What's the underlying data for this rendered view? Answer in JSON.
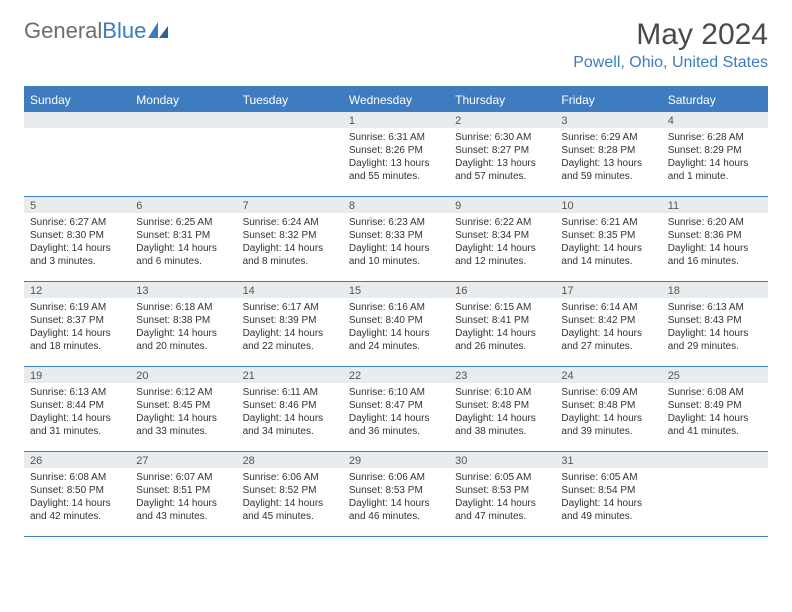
{
  "logo": {
    "text_general": "General",
    "text_blue": "Blue"
  },
  "header": {
    "month_title": "May 2024",
    "location": "Powell, Ohio, United States"
  },
  "colors": {
    "accent": "#3e7bbf",
    "daynum_bg": "#e9ecef",
    "text": "#333333",
    "logo_gray": "#6d6d6d"
  },
  "day_names": [
    "Sunday",
    "Monday",
    "Tuesday",
    "Wednesday",
    "Thursday",
    "Friday",
    "Saturday"
  ],
  "weeks": [
    [
      {
        "day": "",
        "empty": true
      },
      {
        "day": "",
        "empty": true
      },
      {
        "day": "",
        "empty": true
      },
      {
        "day": "1",
        "sunrise": "Sunrise: 6:31 AM",
        "sunset": "Sunset: 8:26 PM",
        "daylight": "Daylight: 13 hours and 55 minutes."
      },
      {
        "day": "2",
        "sunrise": "Sunrise: 6:30 AM",
        "sunset": "Sunset: 8:27 PM",
        "daylight": "Daylight: 13 hours and 57 minutes."
      },
      {
        "day": "3",
        "sunrise": "Sunrise: 6:29 AM",
        "sunset": "Sunset: 8:28 PM",
        "daylight": "Daylight: 13 hours and 59 minutes."
      },
      {
        "day": "4",
        "sunrise": "Sunrise: 6:28 AM",
        "sunset": "Sunset: 8:29 PM",
        "daylight": "Daylight: 14 hours and 1 minute."
      }
    ],
    [
      {
        "day": "5",
        "sunrise": "Sunrise: 6:27 AM",
        "sunset": "Sunset: 8:30 PM",
        "daylight": "Daylight: 14 hours and 3 minutes."
      },
      {
        "day": "6",
        "sunrise": "Sunrise: 6:25 AM",
        "sunset": "Sunset: 8:31 PM",
        "daylight": "Daylight: 14 hours and 6 minutes."
      },
      {
        "day": "7",
        "sunrise": "Sunrise: 6:24 AM",
        "sunset": "Sunset: 8:32 PM",
        "daylight": "Daylight: 14 hours and 8 minutes."
      },
      {
        "day": "8",
        "sunrise": "Sunrise: 6:23 AM",
        "sunset": "Sunset: 8:33 PM",
        "daylight": "Daylight: 14 hours and 10 minutes."
      },
      {
        "day": "9",
        "sunrise": "Sunrise: 6:22 AM",
        "sunset": "Sunset: 8:34 PM",
        "daylight": "Daylight: 14 hours and 12 minutes."
      },
      {
        "day": "10",
        "sunrise": "Sunrise: 6:21 AM",
        "sunset": "Sunset: 8:35 PM",
        "daylight": "Daylight: 14 hours and 14 minutes."
      },
      {
        "day": "11",
        "sunrise": "Sunrise: 6:20 AM",
        "sunset": "Sunset: 8:36 PM",
        "daylight": "Daylight: 14 hours and 16 minutes."
      }
    ],
    [
      {
        "day": "12",
        "sunrise": "Sunrise: 6:19 AM",
        "sunset": "Sunset: 8:37 PM",
        "daylight": "Daylight: 14 hours and 18 minutes."
      },
      {
        "day": "13",
        "sunrise": "Sunrise: 6:18 AM",
        "sunset": "Sunset: 8:38 PM",
        "daylight": "Daylight: 14 hours and 20 minutes."
      },
      {
        "day": "14",
        "sunrise": "Sunrise: 6:17 AM",
        "sunset": "Sunset: 8:39 PM",
        "daylight": "Daylight: 14 hours and 22 minutes."
      },
      {
        "day": "15",
        "sunrise": "Sunrise: 6:16 AM",
        "sunset": "Sunset: 8:40 PM",
        "daylight": "Daylight: 14 hours and 24 minutes."
      },
      {
        "day": "16",
        "sunrise": "Sunrise: 6:15 AM",
        "sunset": "Sunset: 8:41 PM",
        "daylight": "Daylight: 14 hours and 26 minutes."
      },
      {
        "day": "17",
        "sunrise": "Sunrise: 6:14 AM",
        "sunset": "Sunset: 8:42 PM",
        "daylight": "Daylight: 14 hours and 27 minutes."
      },
      {
        "day": "18",
        "sunrise": "Sunrise: 6:13 AM",
        "sunset": "Sunset: 8:43 PM",
        "daylight": "Daylight: 14 hours and 29 minutes."
      }
    ],
    [
      {
        "day": "19",
        "sunrise": "Sunrise: 6:13 AM",
        "sunset": "Sunset: 8:44 PM",
        "daylight": "Daylight: 14 hours and 31 minutes."
      },
      {
        "day": "20",
        "sunrise": "Sunrise: 6:12 AM",
        "sunset": "Sunset: 8:45 PM",
        "daylight": "Daylight: 14 hours and 33 minutes."
      },
      {
        "day": "21",
        "sunrise": "Sunrise: 6:11 AM",
        "sunset": "Sunset: 8:46 PM",
        "daylight": "Daylight: 14 hours and 34 minutes."
      },
      {
        "day": "22",
        "sunrise": "Sunrise: 6:10 AM",
        "sunset": "Sunset: 8:47 PM",
        "daylight": "Daylight: 14 hours and 36 minutes."
      },
      {
        "day": "23",
        "sunrise": "Sunrise: 6:10 AM",
        "sunset": "Sunset: 8:48 PM",
        "daylight": "Daylight: 14 hours and 38 minutes."
      },
      {
        "day": "24",
        "sunrise": "Sunrise: 6:09 AM",
        "sunset": "Sunset: 8:48 PM",
        "daylight": "Daylight: 14 hours and 39 minutes."
      },
      {
        "day": "25",
        "sunrise": "Sunrise: 6:08 AM",
        "sunset": "Sunset: 8:49 PM",
        "daylight": "Daylight: 14 hours and 41 minutes."
      }
    ],
    [
      {
        "day": "26",
        "sunrise": "Sunrise: 6:08 AM",
        "sunset": "Sunset: 8:50 PM",
        "daylight": "Daylight: 14 hours and 42 minutes."
      },
      {
        "day": "27",
        "sunrise": "Sunrise: 6:07 AM",
        "sunset": "Sunset: 8:51 PM",
        "daylight": "Daylight: 14 hours and 43 minutes."
      },
      {
        "day": "28",
        "sunrise": "Sunrise: 6:06 AM",
        "sunset": "Sunset: 8:52 PM",
        "daylight": "Daylight: 14 hours and 45 minutes."
      },
      {
        "day": "29",
        "sunrise": "Sunrise: 6:06 AM",
        "sunset": "Sunset: 8:53 PM",
        "daylight": "Daylight: 14 hours and 46 minutes."
      },
      {
        "day": "30",
        "sunrise": "Sunrise: 6:05 AM",
        "sunset": "Sunset: 8:53 PM",
        "daylight": "Daylight: 14 hours and 47 minutes."
      },
      {
        "day": "31",
        "sunrise": "Sunrise: 6:05 AM",
        "sunset": "Sunset: 8:54 PM",
        "daylight": "Daylight: 14 hours and 49 minutes."
      },
      {
        "day": "",
        "empty": true
      }
    ]
  ]
}
